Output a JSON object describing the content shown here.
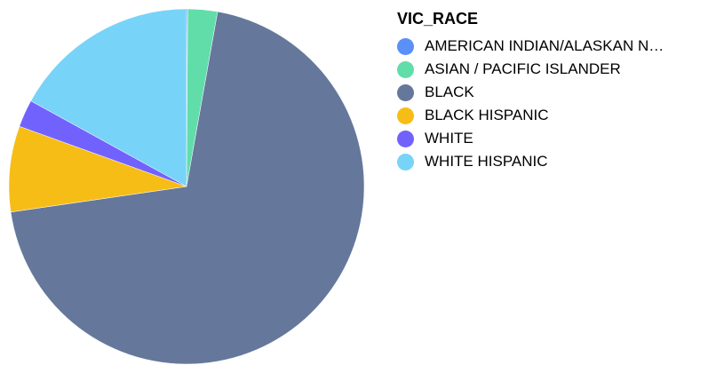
{
  "chart_data": {
    "type": "pie",
    "legend_title": "VIC_RACE",
    "legend_position": "right",
    "start_angle_deg": 0,
    "direction": "clockwise",
    "slices": [
      {
        "label": "AMERICAN INDIAN/ALASKAN N…",
        "value": 0.1,
        "color": "#5B8FF9"
      },
      {
        "label": "ASIAN / PACIFIC ISLANDER",
        "value": 2.7,
        "color": "#61DDAA"
      },
      {
        "label": "BLACK",
        "value": 69.9,
        "color": "#65789B"
      },
      {
        "label": "BLACK HISPANIC",
        "value": 7.8,
        "color": "#F6BD16"
      },
      {
        "label": "WHITE",
        "value": 2.5,
        "color": "#7262FD"
      },
      {
        "label": "WHITE HISPANIC",
        "value": 17.0,
        "color": "#78D3F8"
      }
    ]
  }
}
